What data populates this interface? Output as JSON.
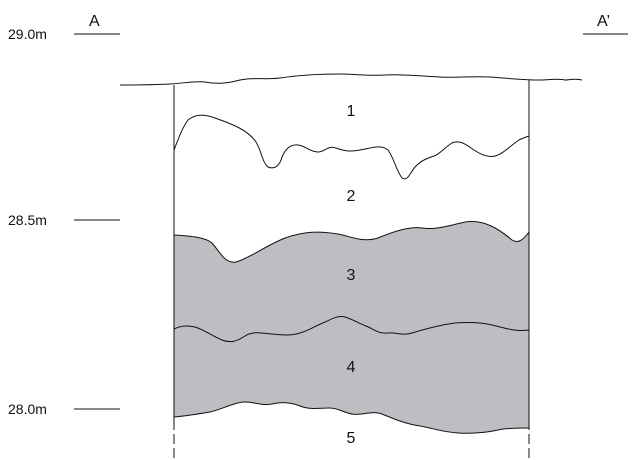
{
  "section": {
    "start_label": "A",
    "end_label": "A’"
  },
  "elevations": [
    {
      "text": "29.0m"
    },
    {
      "text": "28.5m"
    },
    {
      "text": "28.0m"
    }
  ],
  "layers": [
    {
      "number": "1",
      "shaded": false
    },
    {
      "number": "2",
      "shaded": false
    },
    {
      "number": "3",
      "shaded": true
    },
    {
      "number": "4",
      "shaded": true
    },
    {
      "number": "5",
      "shaded": false
    }
  ],
  "colors": {
    "line": "#111111",
    "shade": "#bdbec2",
    "background": "#ffffff"
  }
}
